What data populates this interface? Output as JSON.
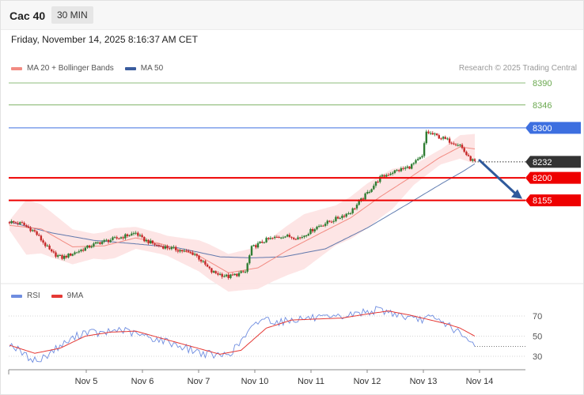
{
  "header": {
    "instrument": "Cac 40",
    "interval": "30 MIN"
  },
  "datetime": "Friday, November 14, 2025 8:16:37 AM CET",
  "copyright": "Research © 2025 Trading Central",
  "colors": {
    "ma20": "#f28b82",
    "ma50": "#3a5c9e",
    "band": "#fde2e2",
    "up": "#2e7d32",
    "down": "#c62828",
    "resistance": "#6aa84f",
    "support": "#ee0000",
    "pivot": "#3d6fe0",
    "current": "#333333",
    "arrow": "#2f5a9c",
    "rsi": "#6f8de0",
    "rsi_ma": "#e53935"
  },
  "chart_data": [
    {
      "type": "candlestick",
      "title": "Cac 40",
      "legend": [
        {
          "name": "MA 20 + Bollinger Bands"
        },
        {
          "name": "MA 50"
        }
      ],
      "legend_placement": "top-left",
      "y_min": 7990,
      "y_max": 8420,
      "x_categories": [
        "Nov 5",
        "Nov 6",
        "Nov 7",
        "Nov 10",
        "Nov 11",
        "Nov 12",
        "Nov 13",
        "Nov 14"
      ],
      "levels": [
        {
          "value": 8390,
          "label": "8390",
          "kind": "resistance"
        },
        {
          "value": 8346,
          "label": "8346",
          "kind": "resistance"
        },
        {
          "value": 8300,
          "label": "8300",
          "kind": "pivot"
        },
        {
          "value": 8232,
          "label": "8232",
          "kind": "current"
        },
        {
          "value": 8200,
          "label": "8200",
          "kind": "support"
        },
        {
          "value": 8155,
          "label": "8155",
          "kind": "support"
        }
      ],
      "price_anchors": [
        [
          0,
          8112
        ],
        [
          6,
          8108
        ],
        [
          12,
          8092
        ],
        [
          20,
          8050
        ],
        [
          25,
          8040
        ],
        [
          32,
          8052
        ],
        [
          42,
          8070
        ],
        [
          52,
          8080
        ],
        [
          60,
          8090
        ],
        [
          63,
          8078
        ],
        [
          70,
          8065
        ],
        [
          78,
          8058
        ],
        [
          88,
          8048
        ],
        [
          96,
          8012
        ],
        [
          104,
          8002
        ],
        [
          112,
          8012
        ],
        [
          115,
          8060
        ],
        [
          122,
          8076
        ],
        [
          130,
          8084
        ],
        [
          138,
          8080
        ],
        [
          146,
          8102
        ],
        [
          154,
          8116
        ],
        [
          162,
          8132
        ],
        [
          168,
          8160
        ],
        [
          176,
          8200
        ],
        [
          182,
          8212
        ],
        [
          190,
          8222
        ],
        [
          196,
          8242
        ],
        [
          198,
          8292
        ],
        [
          204,
          8282
        ],
        [
          210,
          8272
        ],
        [
          214,
          8266
        ],
        [
          218,
          8240
        ],
        [
          221,
          8232
        ]
      ],
      "ma20_anchors": [
        [
          0,
          8105
        ],
        [
          15,
          8098
        ],
        [
          30,
          8062
        ],
        [
          45,
          8064
        ],
        [
          60,
          8080
        ],
        [
          72,
          8068
        ],
        [
          90,
          8044
        ],
        [
          104,
          8010
        ],
        [
          118,
          8020
        ],
        [
          132,
          8055
        ],
        [
          148,
          8090
        ],
        [
          162,
          8120
        ],
        [
          176,
          8162
        ],
        [
          190,
          8200
        ],
        [
          204,
          8240
        ],
        [
          214,
          8262
        ],
        [
          221,
          8258
        ]
      ],
      "ma50_anchors": [
        [
          0,
          8112
        ],
        [
          20,
          8090
        ],
        [
          40,
          8075
        ],
        [
          60,
          8068
        ],
        [
          80,
          8060
        ],
        [
          100,
          8042
        ],
        [
          115,
          8040
        ],
        [
          130,
          8042
        ],
        [
          150,
          8058
        ],
        [
          170,
          8100
        ],
        [
          190,
          8150
        ],
        [
          205,
          8188
        ],
        [
          215,
          8212
        ],
        [
          221,
          8228
        ]
      ],
      "band_width_anchors": [
        [
          0,
          10
        ],
        [
          8,
          55
        ],
        [
          20,
          45
        ],
        [
          40,
          25
        ],
        [
          50,
          30
        ],
        [
          60,
          22
        ],
        [
          75,
          20
        ],
        [
          95,
          35
        ],
        [
          112,
          40
        ],
        [
          125,
          45
        ],
        [
          140,
          55
        ],
        [
          155,
          40
        ],
        [
          170,
          45
        ],
        [
          182,
          40
        ],
        [
          192,
          20
        ],
        [
          205,
          15
        ],
        [
          221,
          30
        ]
      ],
      "bar_count": 222
    },
    {
      "type": "line",
      "title": "RSI",
      "legend": [
        {
          "name": "RSI"
        },
        {
          "name": "9MA"
        }
      ],
      "legend_placement": "top-left",
      "y_min": 18,
      "y_max": 80,
      "y_ticks": [
        30,
        50,
        70
      ],
      "rsi_anchors": [
        [
          0,
          43
        ],
        [
          8,
          30
        ],
        [
          14,
          25
        ],
        [
          20,
          35
        ],
        [
          28,
          45
        ],
        [
          36,
          55
        ],
        [
          44,
          52
        ],
        [
          52,
          57
        ],
        [
          60,
          52
        ],
        [
          68,
          48
        ],
        [
          76,
          44
        ],
        [
          84,
          38
        ],
        [
          92,
          33
        ],
        [
          100,
          30
        ],
        [
          106,
          35
        ],
        [
          114,
          55
        ],
        [
          120,
          68
        ],
        [
          128,
          64
        ],
        [
          136,
          67
        ],
        [
          144,
          68
        ],
        [
          152,
          67
        ],
        [
          160,
          70
        ],
        [
          168,
          74
        ],
        [
          176,
          76
        ],
        [
          184,
          72
        ],
        [
          192,
          66
        ],
        [
          200,
          68
        ],
        [
          208,
          62
        ],
        [
          214,
          52
        ],
        [
          218,
          44
        ],
        [
          221,
          43
        ]
      ],
      "rsi_ma_anchors": [
        [
          0,
          41
        ],
        [
          12,
          33
        ],
        [
          24,
          38
        ],
        [
          36,
          50
        ],
        [
          48,
          54
        ],
        [
          60,
          55
        ],
        [
          72,
          48
        ],
        [
          86,
          40
        ],
        [
          100,
          32
        ],
        [
          110,
          36
        ],
        [
          122,
          58
        ],
        [
          134,
          66
        ],
        [
          146,
          67
        ],
        [
          158,
          68
        ],
        [
          170,
          72
        ],
        [
          180,
          75
        ],
        [
          190,
          71
        ],
        [
          200,
          66
        ],
        [
          208,
          62
        ],
        [
          214,
          58
        ],
        [
          221,
          50
        ]
      ]
    }
  ]
}
